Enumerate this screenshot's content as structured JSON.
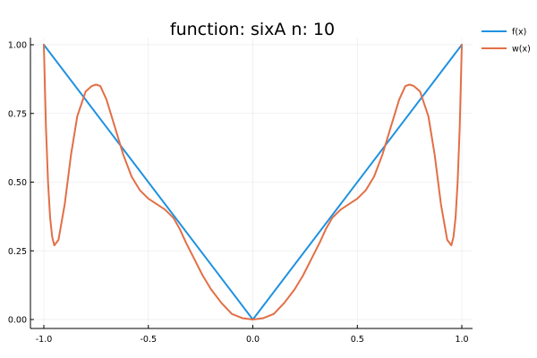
{
  "chart_data": {
    "type": "line",
    "title": "function: sixA n: 10",
    "xlabel": "",
    "ylabel": "",
    "xlim": [
      -1.0,
      1.0
    ],
    "ylim": [
      0.0,
      1.0
    ],
    "x_ticks": [
      "-1.0",
      "-0.5",
      "0.0",
      "0.5",
      "1.0"
    ],
    "y_ticks": [
      "0.00",
      "0.25",
      "0.50",
      "0.75",
      "1.00"
    ],
    "grid": true,
    "legend_position": "top-right-outside",
    "series": [
      {
        "name": "f(x)",
        "color": "#1f92e0",
        "x": [
          -1.0,
          0.0,
          1.0
        ],
        "y": [
          1.0,
          0.0,
          1.0
        ]
      },
      {
        "name": "w(x)",
        "color": "#e26f46",
        "x": [
          -1.0,
          -0.99,
          -0.98,
          -0.97,
          -0.96,
          -0.95,
          -0.93,
          -0.9,
          -0.87,
          -0.84,
          -0.8,
          -0.77,
          -0.75,
          -0.73,
          -0.7,
          -0.66,
          -0.62,
          -0.58,
          -0.54,
          -0.5,
          -0.46,
          -0.42,
          -0.38,
          -0.35,
          -0.32,
          -0.28,
          -0.24,
          -0.2,
          -0.15,
          -0.1,
          -0.05,
          0.0,
          0.05,
          0.1,
          0.15,
          0.2,
          0.24,
          0.28,
          0.32,
          0.35,
          0.38,
          0.42,
          0.46,
          0.5,
          0.54,
          0.58,
          0.62,
          0.66,
          0.7,
          0.73,
          0.75,
          0.77,
          0.8,
          0.84,
          0.87,
          0.9,
          0.93,
          0.95,
          0.96,
          0.97,
          0.98,
          0.99,
          1.0
        ],
        "y": [
          1.0,
          0.7,
          0.5,
          0.37,
          0.3,
          0.27,
          0.29,
          0.42,
          0.6,
          0.74,
          0.83,
          0.85,
          0.855,
          0.85,
          0.8,
          0.7,
          0.6,
          0.52,
          0.47,
          0.44,
          0.42,
          0.4,
          0.37,
          0.33,
          0.28,
          0.22,
          0.16,
          0.11,
          0.06,
          0.02,
          0.005,
          0.0,
          0.005,
          0.02,
          0.06,
          0.11,
          0.16,
          0.22,
          0.28,
          0.33,
          0.37,
          0.4,
          0.42,
          0.44,
          0.47,
          0.52,
          0.6,
          0.7,
          0.8,
          0.85,
          0.855,
          0.85,
          0.83,
          0.74,
          0.6,
          0.42,
          0.29,
          0.27,
          0.3,
          0.37,
          0.5,
          0.7,
          1.0
        ]
      }
    ]
  }
}
